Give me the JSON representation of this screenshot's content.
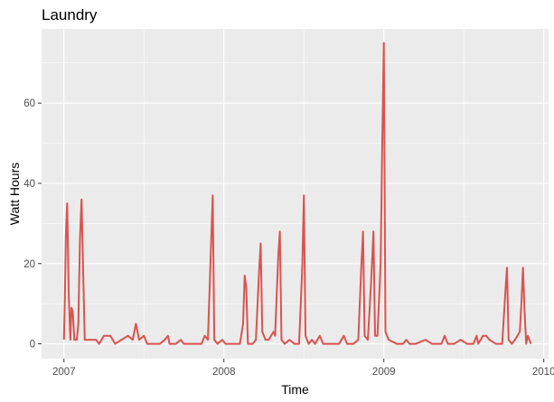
{
  "chart_data": {
    "type": "line",
    "title": "Laundry",
    "xlabel": "Time",
    "ylabel": "Watt Hours",
    "xlim": [
      2006.86,
      2010.03
    ],
    "ylim": [
      -3.7,
      78.5
    ],
    "x_ticks": [
      2007,
      2008,
      2009,
      2010
    ],
    "x_tick_labels": [
      "2007",
      "2008",
      "2009",
      "2010"
    ],
    "y_ticks": [
      0,
      20,
      40,
      60
    ],
    "y_tick_labels": [
      "0",
      "20",
      "40",
      "60"
    ],
    "grid": true,
    "legend": "none",
    "series": [
      {
        "color": "#d9534f",
        "points": [
          [
            2007.0,
            1
          ],
          [
            2007.005,
            10
          ],
          [
            2007.012,
            27
          ],
          [
            2007.02,
            35
          ],
          [
            2007.03,
            12
          ],
          [
            2007.04,
            1
          ],
          [
            2007.047,
            9
          ],
          [
            2007.055,
            8
          ],
          [
            2007.065,
            1
          ],
          [
            2007.08,
            1
          ],
          [
            2007.09,
            5
          ],
          [
            2007.1,
            26
          ],
          [
            2007.11,
            36
          ],
          [
            2007.12,
            18
          ],
          [
            2007.13,
            1
          ],
          [
            2007.15,
            1
          ],
          [
            2007.2,
            1
          ],
          [
            2007.22,
            0
          ],
          [
            2007.25,
            2
          ],
          [
            2007.29,
            2
          ],
          [
            2007.32,
            0
          ],
          [
            2007.36,
            1
          ],
          [
            2007.4,
            2
          ],
          [
            2007.43,
            1
          ],
          [
            2007.45,
            5
          ],
          [
            2007.47,
            1
          ],
          [
            2007.5,
            2
          ],
          [
            2007.52,
            0
          ],
          [
            2007.55,
            0
          ],
          [
            2007.6,
            0
          ],
          [
            2007.63,
            1
          ],
          [
            2007.65,
            2
          ],
          [
            2007.66,
            0
          ],
          [
            2007.7,
            0
          ],
          [
            2007.73,
            1
          ],
          [
            2007.75,
            0
          ],
          [
            2007.8,
            0
          ],
          [
            2007.86,
            0
          ],
          [
            2007.88,
            2
          ],
          [
            2007.9,
            1
          ],
          [
            2007.92,
            25
          ],
          [
            2007.93,
            37
          ],
          [
            2007.94,
            1
          ],
          [
            2007.96,
            0
          ],
          [
            2007.99,
            1
          ],
          [
            2008.01,
            0
          ],
          [
            2008.05,
            0
          ],
          [
            2008.1,
            0
          ],
          [
            2008.12,
            5
          ],
          [
            2008.13,
            17
          ],
          [
            2008.14,
            14
          ],
          [
            2008.15,
            0
          ],
          [
            2008.18,
            0
          ],
          [
            2008.2,
            1
          ],
          [
            2008.22,
            18
          ],
          [
            2008.23,
            25
          ],
          [
            2008.24,
            3
          ],
          [
            2008.26,
            1
          ],
          [
            2008.28,
            1
          ],
          [
            2008.31,
            3
          ],
          [
            2008.32,
            2
          ],
          [
            2008.34,
            22
          ],
          [
            2008.35,
            28
          ],
          [
            2008.36,
            1
          ],
          [
            2008.38,
            0
          ],
          [
            2008.41,
            1
          ],
          [
            2008.44,
            0
          ],
          [
            2008.47,
            0
          ],
          [
            2008.49,
            19
          ],
          [
            2008.5,
            37
          ],
          [
            2008.51,
            2
          ],
          [
            2008.53,
            0
          ],
          [
            2008.55,
            1
          ],
          [
            2008.57,
            0
          ],
          [
            2008.6,
            2
          ],
          [
            2008.62,
            0
          ],
          [
            2008.66,
            0
          ],
          [
            2008.72,
            0
          ],
          [
            2008.75,
            2
          ],
          [
            2008.77,
            0
          ],
          [
            2008.81,
            0
          ],
          [
            2008.84,
            1
          ],
          [
            2008.86,
            20
          ],
          [
            2008.87,
            28
          ],
          [
            2008.88,
            2
          ],
          [
            2008.9,
            1
          ],
          [
            2008.92,
            15
          ],
          [
            2008.935,
            28
          ],
          [
            2008.945,
            2
          ],
          [
            2008.96,
            2
          ],
          [
            2008.98,
            20
          ],
          [
            2008.99,
            50
          ],
          [
            2009.0,
            75
          ],
          [
            2009.01,
            3
          ],
          [
            2009.03,
            1
          ],
          [
            2009.08,
            0
          ],
          [
            2009.12,
            0
          ],
          [
            2009.14,
            1
          ],
          [
            2009.16,
            0
          ],
          [
            2009.2,
            0
          ],
          [
            2009.26,
            1
          ],
          [
            2009.3,
            0
          ],
          [
            2009.36,
            0
          ],
          [
            2009.38,
            2
          ],
          [
            2009.4,
            0
          ],
          [
            2009.44,
            0
          ],
          [
            2009.48,
            1
          ],
          [
            2009.52,
            0
          ],
          [
            2009.56,
            0
          ],
          [
            2009.58,
            2
          ],
          [
            2009.59,
            0
          ],
          [
            2009.62,
            2
          ],
          [
            2009.64,
            2
          ],
          [
            2009.66,
            1
          ],
          [
            2009.7,
            0
          ],
          [
            2009.74,
            0
          ],
          [
            2009.76,
            13
          ],
          [
            2009.77,
            19
          ],
          [
            2009.78,
            1
          ],
          [
            2009.8,
            0
          ],
          [
            2009.82,
            1
          ],
          [
            2009.85,
            3
          ],
          [
            2009.86,
            10
          ],
          [
            2009.87,
            19
          ],
          [
            2009.88,
            8
          ],
          [
            2009.89,
            0
          ],
          [
            2009.9,
            2
          ],
          [
            2009.91,
            1
          ],
          [
            2009.92,
            0
          ]
        ]
      }
    ]
  }
}
